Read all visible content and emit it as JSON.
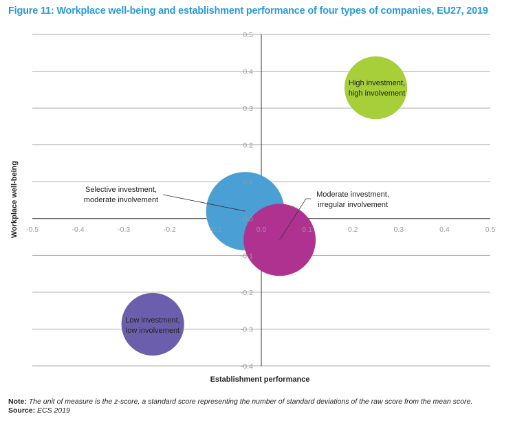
{
  "title": "Figure 11: Workplace well-being and establishment performance of four types of companies, EU27, 2019",
  "note_label": "Note:",
  "note_text": "The unit of measure is the z-score, a standard score representing the number of standard deviations of the raw score from the mean score.",
  "source_label": "Source:",
  "source_text": "ECS 2019",
  "chart_data": {
    "type": "bubble",
    "xlabel": "Establishment performance",
    "ylabel": "Workplace well-being",
    "xlim": [
      -0.5,
      0.5
    ],
    "ylim": [
      -0.4,
      0.5
    ],
    "xticks": [
      "-0.5",
      "-0.4",
      "-0.3",
      "-0.2",
      "-0.1",
      "0.0",
      "0.1",
      "0.2",
      "0.3",
      "0.4",
      "0.5"
    ],
    "yticks": [
      "0.5",
      "0.4",
      "0.3",
      "0.2",
      "0.1",
      "0.0",
      "-0.1",
      "-0.2",
      "-0.3",
      "-0.4"
    ],
    "grid": "horizontal",
    "points": [
      {
        "label": [
          "High investment,",
          "high involvement"
        ],
        "x": 0.25,
        "y": 0.355,
        "size": 0.8,
        "color": "#a6cf3a"
      },
      {
        "label": [
          "Selective investment,",
          "moderate involvement"
        ],
        "x": -0.035,
        "y": 0.02,
        "size": 1.0,
        "color": "#4a9fd5"
      },
      {
        "label": [
          "Moderate investment,",
          "irregular involvement"
        ],
        "x": 0.04,
        "y": -0.058,
        "size": 0.92,
        "color": "#b03290"
      },
      {
        "label": [
          "Low investment,",
          "low involvement"
        ],
        "x": -0.237,
        "y": -0.287,
        "size": 0.8,
        "color": "#6b5fad"
      }
    ]
  }
}
